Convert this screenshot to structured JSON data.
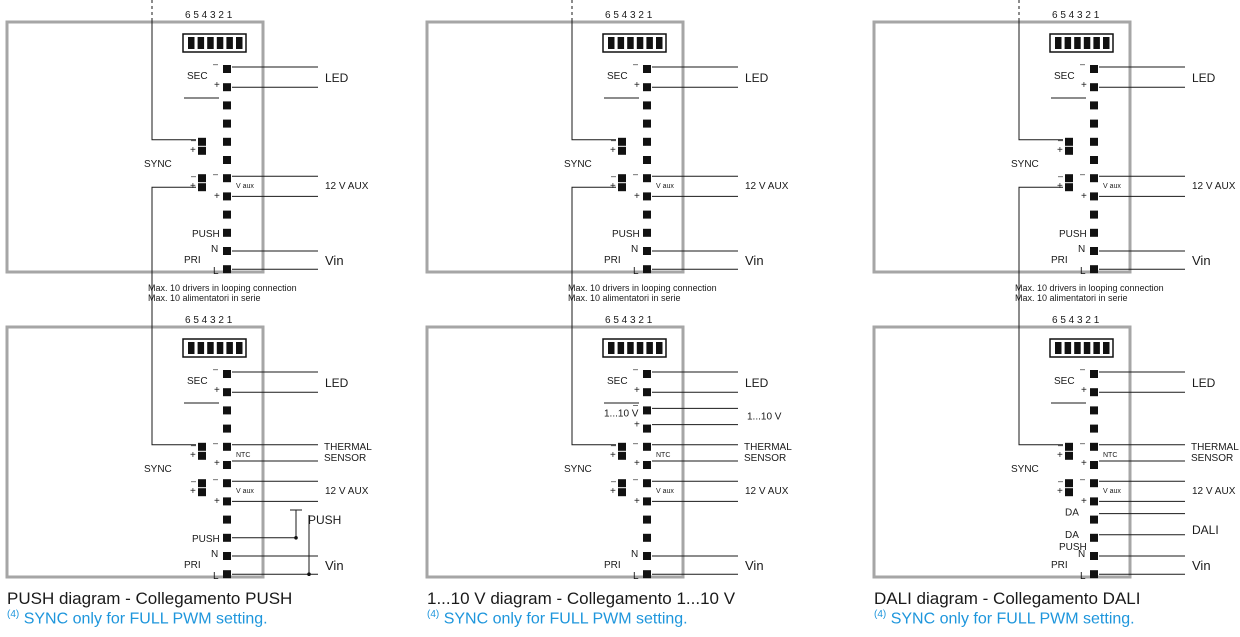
{
  "labels": {
    "dip": "6 5 4 3 2 1",
    "sec": "SEC",
    "minus": "–",
    "plus": "+",
    "sync": "SYNC",
    "vaux": "V aux",
    "ntc": "NTC",
    "push": "PUSH",
    "pri": "PRI",
    "n": "N",
    "l": "L",
    "led": "LED",
    "aux12": "12 V AUX",
    "vin": "Vin",
    "thermal": "THERMAL",
    "sensor": "SENSOR",
    "max_en": "Max. 10 drivers in looping connection",
    "max_it": "Max. 10 alimentatori in serie",
    "push_switch": "PUSH",
    "v110": "1...10 V",
    "v110_pin": "1...10 V",
    "da": "DA",
    "dali": "DALI"
  },
  "panels": [
    {
      "title": "PUSH diagram - Collegamento PUSH",
      "note_ref": "(4)",
      "note": "SYNC only for FULL PWM setting."
    },
    {
      "title": "1...10 V diagram - Collegamento 1...10 V",
      "note_ref": "(4)",
      "note": "SYNC only for FULL PWM setting."
    },
    {
      "title": "DALI diagram - Collegamento DALI",
      "note_ref": "(4)",
      "note": "SYNC only for FULL PWM setting."
    }
  ]
}
